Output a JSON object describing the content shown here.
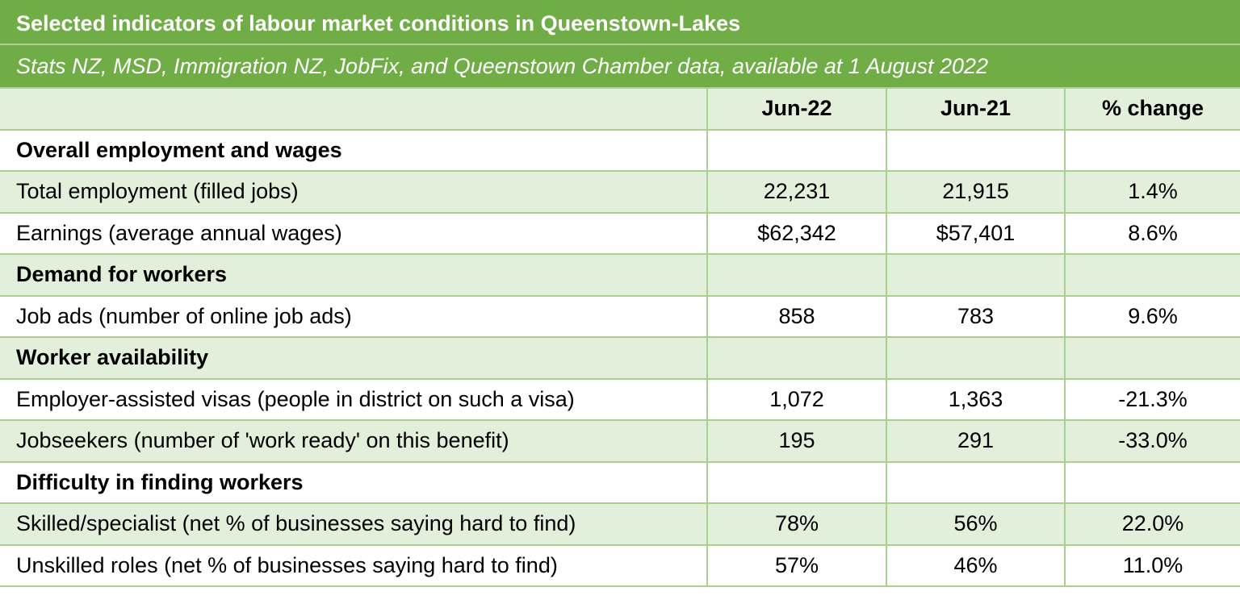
{
  "header": {
    "title": "Selected indicators of labour market conditions in Queenstown-Lakes",
    "subtitle": "Stats NZ, MSD, Immigration NZ, JobFix, and Queenstown Chamber data, available at 1 August 2022"
  },
  "table": {
    "columns": [
      "Jun-22",
      "Jun-21",
      "% change"
    ],
    "sections": [
      {
        "title": "Overall employment and wages",
        "rows": [
          [
            "Total employment (filled jobs)",
            "22,231",
            "21,915",
            "1.4%"
          ],
          [
            "Earnings (average annual wages)",
            "$62,342",
            "$57,401",
            "8.6%"
          ]
        ]
      },
      {
        "title": "Demand for workers",
        "rows": [
          [
            "Job ads (number of online job ads)",
            "858",
            "783",
            "9.6%"
          ]
        ]
      },
      {
        "title": "Worker availability",
        "rows": [
          [
            "Employer-assisted visas (people in district on such a visa)",
            "1,072",
            "1,363",
            "-21.3%"
          ],
          [
            "Jobseekers (number of 'work ready' on this benefit)",
            "195",
            "291",
            "-33.0%"
          ]
        ]
      },
      {
        "title": "Difficulty in finding workers",
        "rows": [
          [
            "Skilled/specialist (net % of businesses saying hard to find)",
            "78%",
            "56%",
            "22.0%"
          ],
          [
            "Unskilled roles (net % of businesses saying hard to find)",
            "57%",
            "46%",
            "11.0%"
          ]
        ]
      }
    ]
  }
}
